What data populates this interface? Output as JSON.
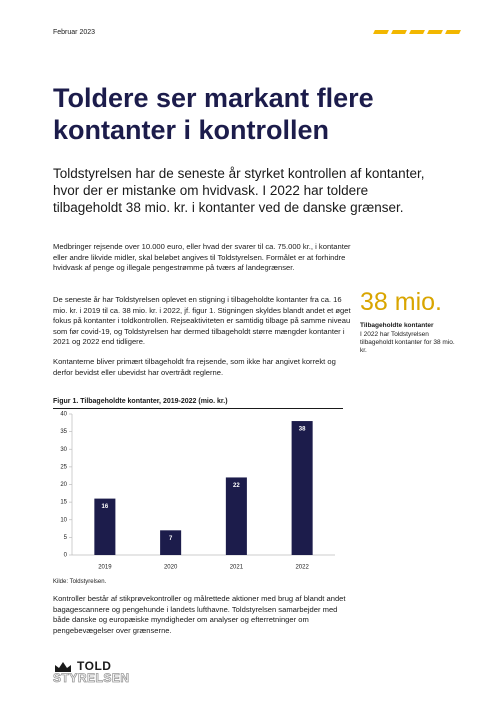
{
  "header": {
    "date": "Februar 2023"
  },
  "title": "Toldere ser markant flere kontanter i kontrollen",
  "lead": "Toldstyrelsen har de seneste år styrket kontrollen af kontanter, hvor der er mistanke om hvidvask. I 2022 har toldere tilbageholdt 38 mio. kr. i kontanter ved de danske grænser.",
  "paragraphs": [
    "Medbringer rejsende over 10.000 euro, eller hvad der svarer til ca. 75.000 kr., i kontanter eller andre likvide midler, skal beløbet angives til Toldstyrelsen. Formålet er at forhindre hvidvask af penge og illegale pengestrømme på tværs af landegrænser.",
    "De seneste år har Toldstyrelsen oplevet en stigning i tilbageholdte kontanter fra ca. 16 mio. kr. i 2019 til ca. 38 mio. kr. i 2022, jf. figur 1. Stigningen skyldes blandt andet et øget fokus på kontanter i toldkontrollen. Rejseaktiviteten er samtidig tilbage på samme niveau som før covid-19, og Toldstyrelsen har dermed tilbageholdt større mængder kontanter i 2021 og 2022 end tidligere.",
    "Kontanterne bliver primært tilbageholdt fra rejsende, som ikke har angivet korrekt og derfor bevidst eller ubevidst har overtrådt reglerne."
  ],
  "callout": {
    "figure": "38 mio.",
    "label": "Tilbageholdte kontanter",
    "text": "I 2022 har Toldstyrelsen tilbageholdt kontanter for 38 mio. kr."
  },
  "chart_data": {
    "type": "bar",
    "title": "Figur 1. Tilbageholdte kontanter, 2019-2022 (mio. kr.)",
    "categories": [
      "2019",
      "2020",
      "2021",
      "2022"
    ],
    "values": [
      16,
      7,
      22,
      38
    ],
    "color": "#1c1c4b",
    "ylim": [
      0,
      40
    ],
    "yticks": [
      0,
      5,
      10,
      15,
      20,
      25,
      30,
      35,
      40
    ],
    "grid": false
  },
  "source": "Kilde: Toldstyrelsen.",
  "closing": "Kontroller består af stikprøvekontroller og målrettede aktioner med brug af blandt andet bagagescannere og pengehunde i landets lufthavne. Toldstyrelsen samarbejder med både danske og europæiske myndigheder om analyser og efterretninger om pengebevægelser over grænserne.",
  "logo": {
    "top": "TOLD",
    "bottom": "STYRELSEN"
  }
}
